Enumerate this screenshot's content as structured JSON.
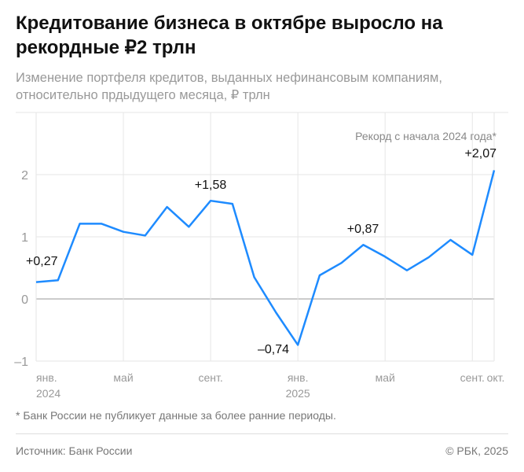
{
  "title": "Кредитование бизнеса в октябре выросло на рекордные ₽2 трлн",
  "subtitle": "Изменение портфеля кредитов, выданных нефинансовым компаниям, относительно прдыдущего месяца, ₽ трлн",
  "footnote": "* Банк России не публикует данные за более ранние периоды.",
  "source": "Источник: Банк России",
  "copyright": "© РБК, 2025",
  "chart_data": {
    "type": "line",
    "x": [
      "2024-01",
      "2024-02",
      "2024-03",
      "2024-04",
      "2024-05",
      "2024-06",
      "2024-07",
      "2024-08",
      "2024-09",
      "2024-10",
      "2024-11",
      "2024-12",
      "2025-01",
      "2025-02",
      "2025-03",
      "2025-04",
      "2025-05",
      "2025-06",
      "2025-07",
      "2025-08",
      "2025-09",
      "2025-10"
    ],
    "values": [
      0.27,
      0.3,
      1.21,
      1.21,
      1.08,
      1.02,
      1.48,
      1.16,
      1.58,
      1.53,
      0.35,
      -0.22,
      -0.74,
      0.38,
      0.58,
      0.87,
      0.68,
      0.46,
      0.67,
      0.95,
      0.71,
      2.07
    ],
    "ylim": [
      -1,
      2
    ],
    "yticks": [
      {
        "v": -1,
        "label": "–1"
      },
      {
        "v": 0,
        "label": "0"
      },
      {
        "v": 1,
        "label": "1"
      },
      {
        "v": 2,
        "label": "2"
      }
    ],
    "xticks": [
      {
        "i": 0,
        "label": "янв.",
        "sub": "2024"
      },
      {
        "i": 4,
        "label": "май",
        "sub": ""
      },
      {
        "i": 8,
        "label": "сент.",
        "sub": ""
      },
      {
        "i": 12,
        "label": "янв.",
        "sub": "2025"
      },
      {
        "i": 16,
        "label": "май",
        "sub": ""
      },
      {
        "i": 20,
        "label": "сент.",
        "sub": ""
      },
      {
        "i": 21,
        "label": "окт.",
        "sub": ""
      }
    ],
    "data_labels": [
      {
        "i": 0,
        "label": "+0,27"
      },
      {
        "i": 8,
        "label": "+1,58"
      },
      {
        "i": 12,
        "label": "–0,74"
      },
      {
        "i": 15,
        "label": "+0,87"
      },
      {
        "i": 21,
        "label": "+2,07"
      }
    ],
    "annotation": "Рекорд с начала 2024 года*",
    "line_color": "#1e8bff",
    "grid": true
  }
}
